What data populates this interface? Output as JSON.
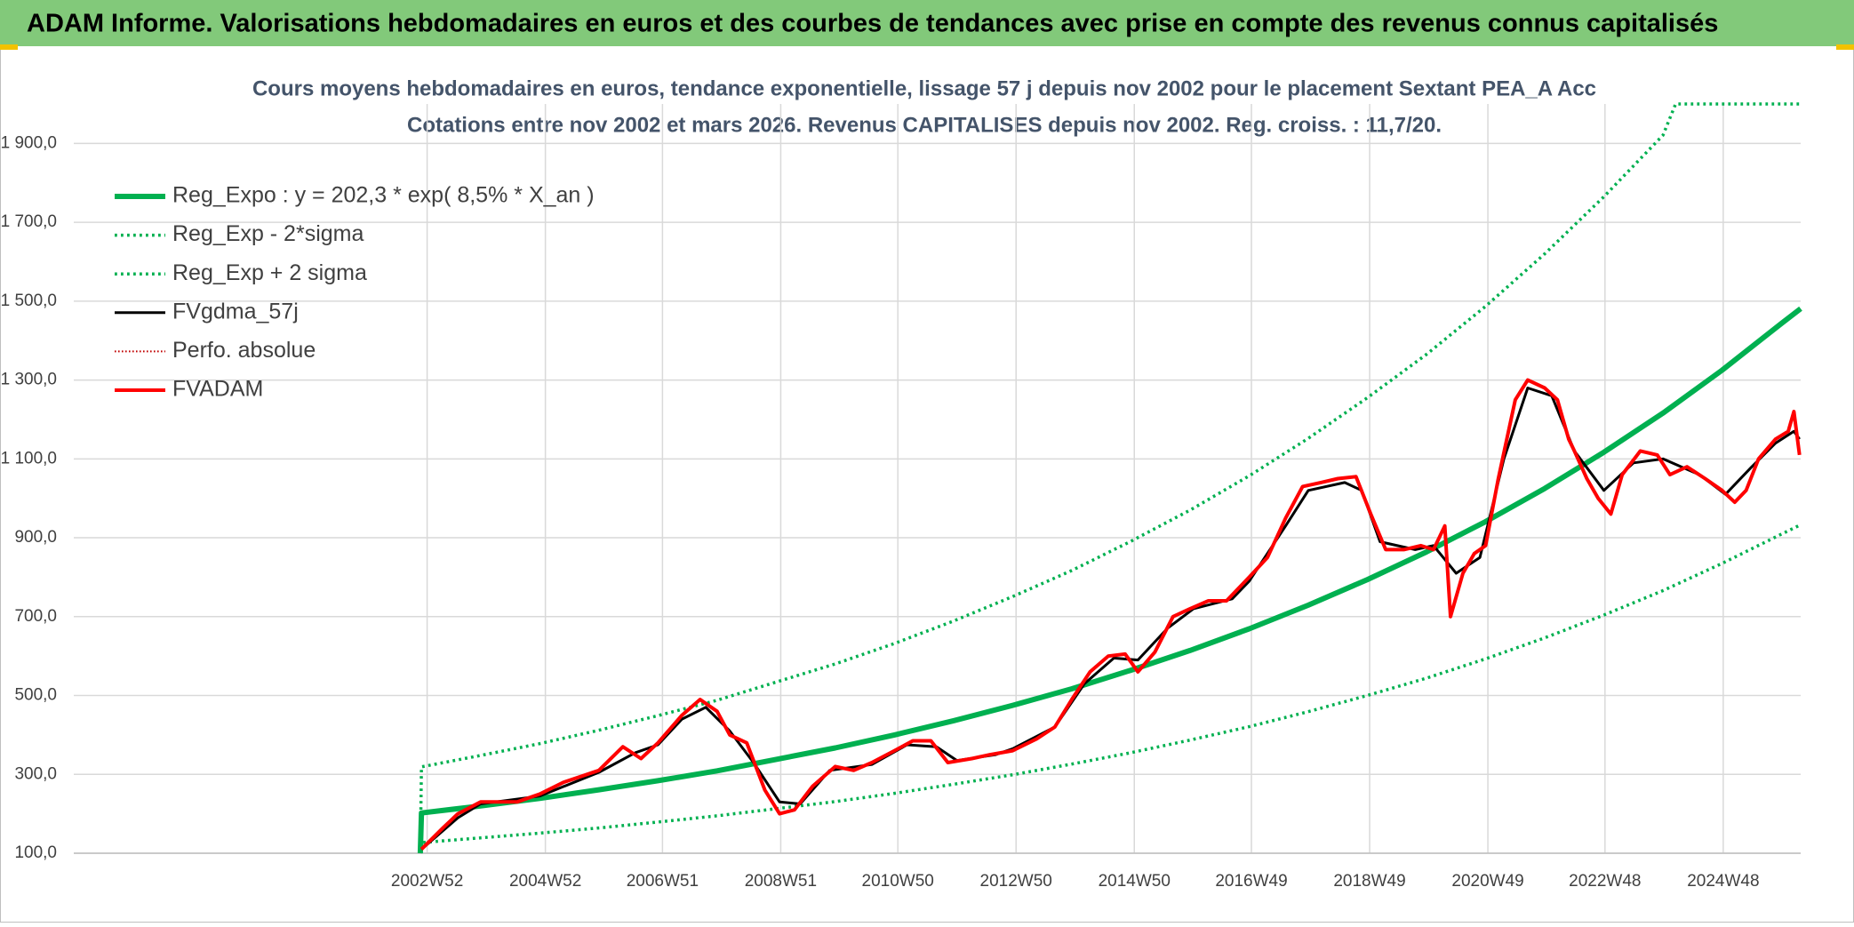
{
  "chart_data": {
    "type": "line",
    "title": "ADAM Informe. Valorisations hebdomadaires en euros et des courbes de tendances avec prise en compte des revenus connus capitalisés",
    "subtitle_lines": [
      "Cours moyens hebdomadaires en euros, tendance exponentielle, lissage 57 j depuis nov 2002 pour le placement Sextant PEA_A Acc",
      "Cotations entre nov 2002 et mars 2026. Revenus CAPITALISES depuis nov 2002. Reg. croiss. : 11,7/20."
    ],
    "xlim": [
      "1997W01",
      "2026W12"
    ],
    "xticks": [
      "2002W52",
      "2004W52",
      "2006W51",
      "2008W51",
      "2010W50",
      "2012W50",
      "2014W50",
      "2016W49",
      "2018W49",
      "2020W49",
      "2022W48",
      "2024W48"
    ],
    "ylim": [
      100,
      2000
    ],
    "yticks": [
      {
        "value": 100,
        "label": "100,0"
      },
      {
        "value": 300,
        "label": "300,0"
      },
      {
        "value": 500,
        "label": "500,0"
      },
      {
        "value": 700,
        "label": "700,0"
      },
      {
        "value": 900,
        "label": "900,0"
      },
      {
        "value": 1100,
        "label": "1 100,0"
      },
      {
        "value": 1300,
        "label": "1 300,0"
      },
      {
        "value": 1500,
        "label": "1 500,0"
      },
      {
        "value": 1700,
        "label": "1 700,0"
      },
      {
        "value": 1900,
        "label": "1 900,0"
      }
    ],
    "grid": true,
    "legend": "top-left",
    "series": [
      {
        "name": "Reg_Expo : y = 202,3 * exp( 8,5% *  X_an )",
        "color": "#00b050",
        "style": "solid",
        "linewidth": 6,
        "x": [
          "2002W46",
          "2002W47",
          "2003W47",
          "2004W47",
          "2005W47",
          "2006W47",
          "2007W47",
          "2008W47",
          "2009W47",
          "2010W47",
          "2011W47",
          "2012W47",
          "2013W47",
          "2014W47",
          "2015W47",
          "2016W47",
          "2017W47",
          "2018W47",
          "2019W47",
          "2020W47",
          "2021W47",
          "2022W47",
          "2023W47",
          "2024W47",
          "2025W47",
          "2026W12"
        ],
        "values": [
          100,
          202,
          220,
          239,
          261,
          284,
          309,
          338,
          367,
          400,
          436,
          475,
          517,
          564,
          614,
          669,
          729,
          794,
          864,
          941,
          1025,
          1117,
          1216,
          1325,
          1443,
          1481
        ]
      },
      {
        "name": "Reg_Exp - 2*sigma",
        "color": "#00b050",
        "style": "dotted",
        "linewidth": 3.5,
        "x": [
          "2002W46",
          "2002W47",
          "2003W47",
          "2004W47",
          "2005W47",
          "2006W47",
          "2007W47",
          "2008W47",
          "2009W47",
          "2010W47",
          "2011W47",
          "2012W47",
          "2013W47",
          "2014W47",
          "2015W47",
          "2016W47",
          "2017W47",
          "2018W47",
          "2019W47",
          "2020W47",
          "2021W47",
          "2022W47",
          "2023W47",
          "2024W47",
          "2025W47",
          "2026W12"
        ],
        "values": [
          100,
          127,
          139,
          151,
          164,
          179,
          195,
          213,
          231,
          252,
          275,
          299,
          326,
          355,
          387,
          421,
          459,
          500,
          544,
          593,
          646,
          704,
          766,
          835,
          909,
          933
        ]
      },
      {
        "name": "Reg_Exp + 2 sigma",
        "color": "#00b050",
        "style": "dotted",
        "linewidth": 3.5,
        "x": [
          "2002W46",
          "2002W47",
          "2003W47",
          "2004W47",
          "2005W47",
          "2006W47",
          "2007W47",
          "2008W47",
          "2009W47",
          "2010W47",
          "2011W47",
          "2012W47",
          "2013W47",
          "2014W47",
          "2015W47",
          "2016W47",
          "2017W47",
          "2018W47",
          "2019W47",
          "2020W47",
          "2021W47",
          "2022W47",
          "2023W47",
          "2024W06",
          "2024W47",
          "2025W47",
          "2026W12"
        ],
        "values": [
          100,
          319,
          348,
          378,
          412,
          449,
          488,
          534,
          580,
          632,
          689,
          751,
          817,
          891,
          970,
          1057,
          1152,
          1255,
          1365,
          1487,
          1620,
          1765,
          1921,
          2000,
          2000,
          2000,
          2000
        ]
      },
      {
        "name": "FVgdma_57j",
        "color": "#000000",
        "style": "solid",
        "linewidth": 3,
        "x": [
          "2002W47",
          "2003W27",
          "2003W47",
          "2004W47",
          "2005W47",
          "2006W27",
          "2006W47",
          "2007W16",
          "2007W37",
          "2008W06",
          "2008W27",
          "2008W50",
          "2009W16",
          "2009W42",
          "2010W27",
          "2011W06",
          "2011W32",
          "2011W50",
          "2012W32",
          "2012W47",
          "2013W32",
          "2014W06",
          "2014W32",
          "2015W01",
          "2015W27",
          "2015W50",
          "2016W32",
          "2016W47",
          "2017W27",
          "2017W47",
          "2018W27",
          "2018W42",
          "2019W06",
          "2019W37",
          "2020W01",
          "2020W21",
          "2020W42",
          "2021W11",
          "2021W32",
          "2022W01",
          "2022W21",
          "2022W47",
          "2023W21",
          "2023W47",
          "2024W27",
          "2024W50",
          "2025W21",
          "2025W42",
          "2026W06",
          "2026W11"
        ],
        "values": [
          110,
          190,
          225,
          245,
          305,
          355,
          375,
          440,
          470,
          410,
          330,
          230,
          225,
          310,
          325,
          375,
          370,
          335,
          350,
          365,
          420,
          530,
          595,
          590,
          670,
          720,
          745,
          790,
          930,
          1020,
          1040,
          1020,
          890,
          870,
          880,
          810,
          850,
          1100,
          1280,
          1260,
          1120,
          1020,
          1090,
          1100,
          1060,
          1010,
          1080,
          1140,
          1170,
          1150
        ]
      },
      {
        "name": "Perfo. absolue",
        "color": "#c00000",
        "style": "dotted",
        "linewidth": 2
      },
      {
        "name": "FVADAM",
        "color": "#ff0000",
        "style": "solid",
        "linewidth": 4,
        "x": [
          "2002W47",
          "2003W14",
          "2003W27",
          "2003W47",
          "2004W27",
          "2004W47",
          "2005W16",
          "2005W47",
          "2006W16",
          "2006W32",
          "2006W47",
          "2007W16",
          "2007W32",
          "2007W47",
          "2008W06",
          "2008W21",
          "2008W37",
          "2008W50",
          "2009W11",
          "2009W27",
          "2009W47",
          "2010W11",
          "2010W27",
          "2010W47",
          "2011W11",
          "2011W27",
          "2011W42",
          "2012W11",
          "2012W27",
          "2012W47",
          "2013W16",
          "2013W32",
          "2013W47",
          "2014W11",
          "2014W27",
          "2014W42",
          "2015W01",
          "2015W16",
          "2015W32",
          "2015W47",
          "2016W11",
          "2016W27",
          "2016W47",
          "2017W11",
          "2017W27",
          "2017W42",
          "2018W06",
          "2018W21",
          "2018W37",
          "2018W50",
          "2019W11",
          "2019W27",
          "2019W42",
          "2020W01",
          "2020W11",
          "2020W16",
          "2020W27",
          "2020W37",
          "2020W47",
          "2021W06",
          "2021W21",
          "2021W32",
          "2021W47",
          "2022W06",
          "2022W16",
          "2022W21",
          "2022W32",
          "2022W42",
          "2023W01",
          "2023W11",
          "2023W27",
          "2023W42",
          "2024W01",
          "2024W16",
          "2024W32",
          "2024W47",
          "2025W06",
          "2025W16",
          "2025W27",
          "2025W42",
          "2026W01",
          "2026W06",
          "2026W11"
        ],
        "values": [
          110,
          165,
          200,
          230,
          230,
          250,
          280,
          310,
          370,
          340,
          380,
          450,
          490,
          460,
          400,
          380,
          260,
          200,
          210,
          270,
          320,
          310,
          330,
          360,
          385,
          385,
          330,
          340,
          350,
          360,
          390,
          420,
          490,
          560,
          600,
          605,
          560,
          610,
          700,
          720,
          740,
          740,
          800,
          850,
          950,
          1030,
          1040,
          1050,
          1055,
          960,
          870,
          870,
          880,
          870,
          930,
          700,
          810,
          860,
          880,
          1050,
          1250,
          1300,
          1280,
          1250,
          1150,
          1120,
          1050,
          1000,
          960,
          1060,
          1120,
          1110,
          1060,
          1080,
          1050,
          1020,
          990,
          1020,
          1100,
          1150,
          1170,
          1220,
          1110
        ]
      }
    ]
  }
}
